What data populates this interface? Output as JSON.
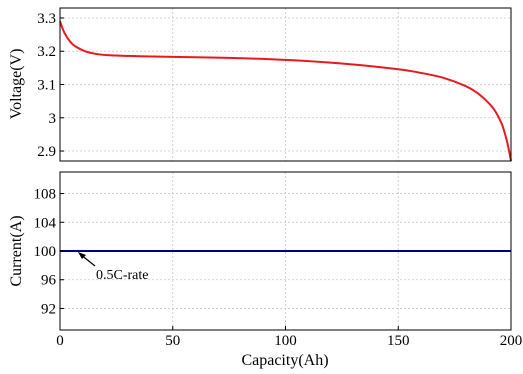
{
  "colors": {
    "voltage_line": "#e8191c",
    "current_line": "#00007f",
    "grid": "#c8c8c8",
    "frame": "#000000"
  },
  "chart_data": [
    {
      "type": "line",
      "panel": "top",
      "ylabel": "Voltage(V)",
      "xlim": [
        0,
        200
      ],
      "ylim": [
        2.87,
        3.33
      ],
      "yticks": [
        2.9,
        3,
        3.1,
        3.2,
        3.3
      ],
      "ytick_labels": [
        "2.9",
        "3",
        "3.1",
        "3.2",
        "3.3"
      ],
      "grid": true,
      "series": [
        {
          "x": [
            0,
            2,
            5,
            8,
            12,
            18,
            25,
            35,
            50,
            75,
            100,
            125,
            150,
            160,
            170,
            180,
            185,
            190,
            193,
            196,
            198,
            199,
            200
          ],
          "y": [
            3.29,
            3.255,
            3.225,
            3.21,
            3.198,
            3.19,
            3.187,
            3.185,
            3.183,
            3.18,
            3.174,
            3.163,
            3.146,
            3.135,
            3.12,
            3.095,
            3.075,
            3.045,
            3.02,
            2.98,
            2.935,
            2.905,
            2.87
          ]
        }
      ]
    },
    {
      "type": "line",
      "panel": "bottom",
      "xlabel": "Capacity(Ah)",
      "ylabel": "Current(A)",
      "xlim": [
        0,
        200
      ],
      "ylim": [
        89,
        111
      ],
      "xticks": [
        0,
        50,
        100,
        150,
        200
      ],
      "xtick_labels": [
        "0",
        "50",
        "100",
        "150",
        "200"
      ],
      "yticks": [
        92,
        96,
        100,
        104,
        108
      ],
      "ytick_labels": [
        "92",
        "96",
        "100",
        "104",
        "108"
      ],
      "grid": true,
      "series": [
        {
          "x": [
            0,
            200
          ],
          "y": [
            100,
            100
          ]
        }
      ],
      "annotations": [
        {
          "text": "0.5C-rate",
          "x": 2,
          "y": 100
        }
      ]
    }
  ]
}
